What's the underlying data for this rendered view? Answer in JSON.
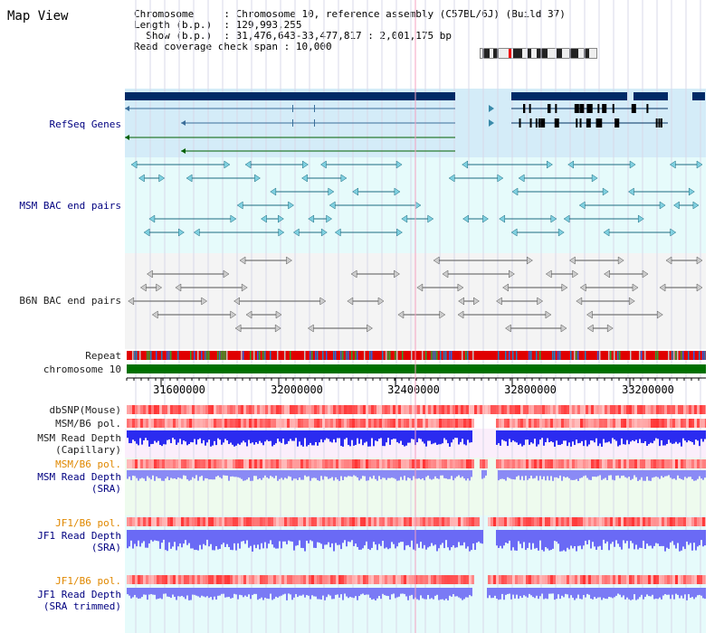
{
  "page_title": "Map View",
  "info": {
    "chromosome_label": "Chromosome",
    "chromosome_value": "Chromosome 10, reference assembly (C57BL/6J) (Build 37)",
    "length_label": "Length (b.p.)",
    "length_value": "129,993,255",
    "show_label": "Show (b.p.)",
    "show_value": "31,476,643-33,477,817 : 2,001,175 bp",
    "span_label": "Read coverage check span",
    "span_value": "10,000"
  },
  "tracks": {
    "refseq": "RefSeq Genes",
    "msm_bac": "MSM BAC end pairs",
    "b6n_bac": "B6N BAC end pairs",
    "repeat": "Repeat",
    "chromosome": "chromosome 10",
    "dbsnp": "dbSNP(Mouse)",
    "msm_pol": "MSM/B6 pol.",
    "msm_depth_cap_1": "MSM Read Depth",
    "msm_depth_cap_2": "(Capillary)",
    "msm_pol_sra": "MSM/B6 pol.",
    "msm_depth_sra_1": "MSM Read Depth",
    "msm_depth_sra_2": "(SRA)",
    "jf1_pol": "JF1/B6 pol.",
    "jf1_depth_1": "JF1 Read Depth",
    "jf1_depth_2": "(SRA)",
    "jf1_pol_trim": "JF1/B6 pol.",
    "jf1_depth_trim_1": "JF1 Read Depth",
    "jf1_depth_trim_2": "(SRA trimmed)"
  },
  "axis": {
    "ticks": [
      "31600000",
      "32000000",
      "32400000",
      "32800000",
      "33200000"
    ]
  },
  "colors": {
    "navy": "#000080",
    "orange": "#e08800",
    "refseq_bg": "#d4ecf8",
    "bac_bg": "#e6fbfb",
    "chrom_green": "#007000",
    "depth_blue": "#2b2bf0",
    "depth_light": "#8a8af5"
  }
}
